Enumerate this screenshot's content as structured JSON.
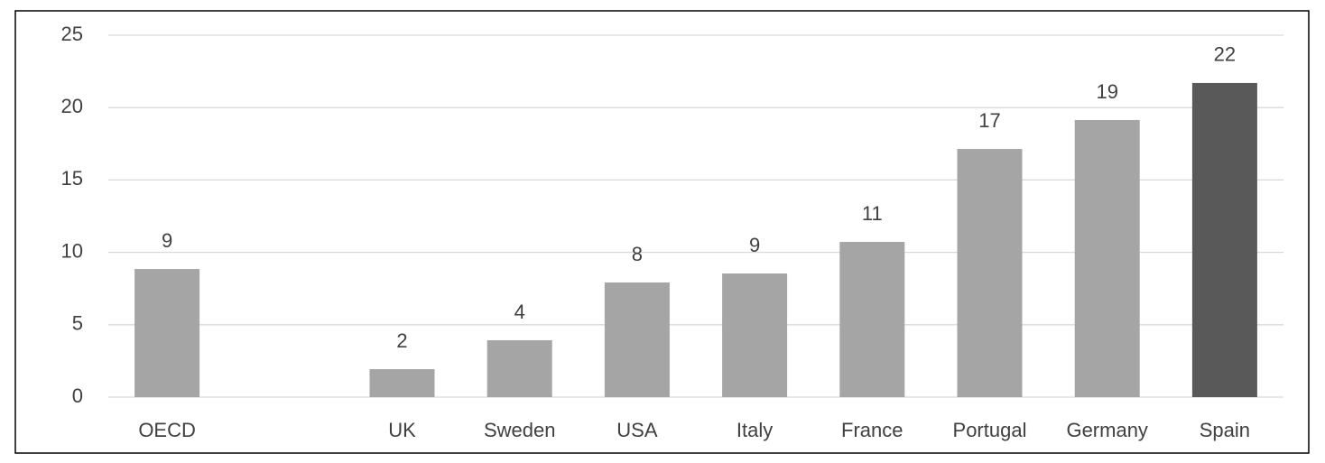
{
  "chart_data": {
    "type": "bar",
    "categories": [
      "OECD",
      null,
      "UK",
      "Sweden",
      "USA",
      "Italy",
      "France",
      "Portugal",
      "Germany",
      "Spain"
    ],
    "values": [
      8.85,
      null,
      1.93,
      3.93,
      7.92,
      8.54,
      10.72,
      17.14,
      19.14,
      21.7
    ],
    "value_labels": [
      "9",
      null,
      "2",
      "4",
      "8",
      "9",
      "11",
      "17",
      "19",
      "22"
    ],
    "colors": [
      "#a5a5a5",
      null,
      "#a5a5a5",
      "#a5a5a5",
      "#a5a5a5",
      "#a5a5a5",
      "#a5a5a5",
      "#a5a5a5",
      "#a5a5a5",
      "#595959"
    ],
    "ylim": [
      0,
      25
    ],
    "yticks": [
      0,
      5,
      10,
      15,
      20,
      25
    ],
    "grid": true
  }
}
